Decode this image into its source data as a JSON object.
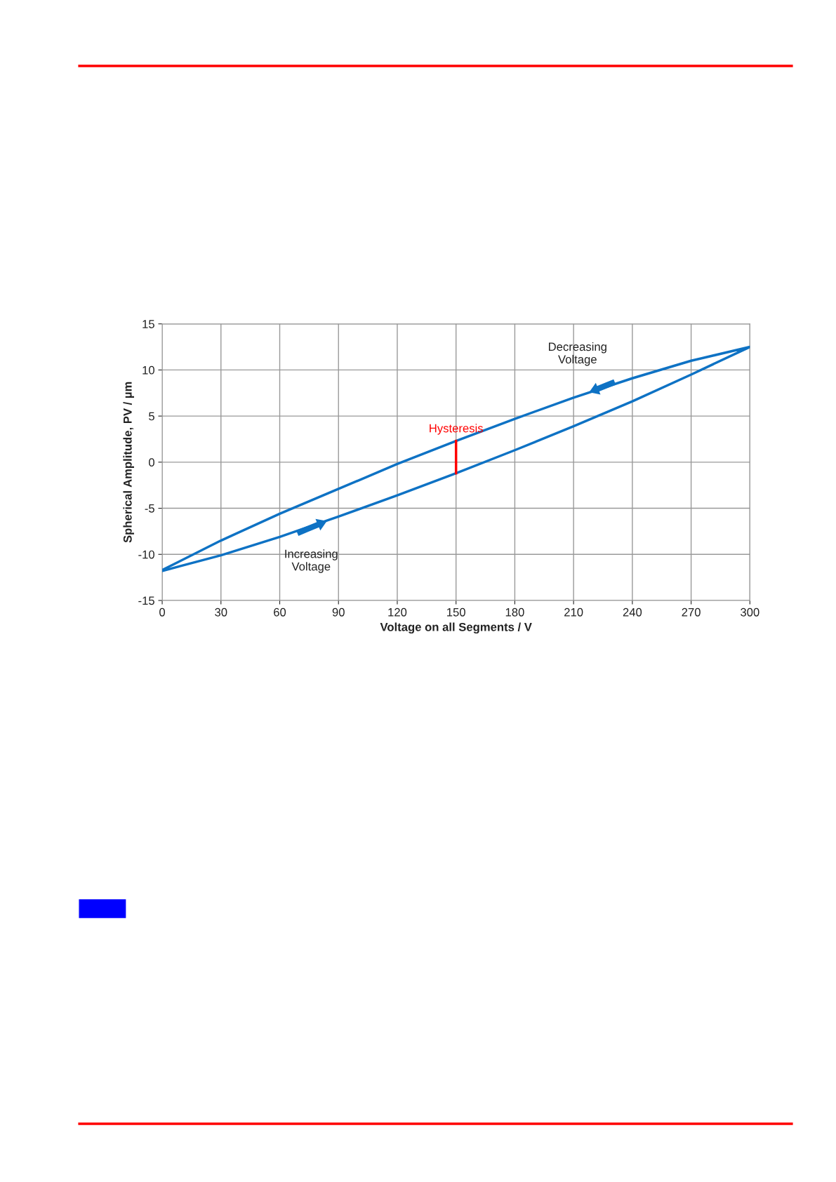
{
  "chart_data": {
    "type": "line",
    "xlabel": "Voltage on all Segments / V",
    "ylabel": "Spherical Amplitude, PV / µm",
    "series": [
      {
        "color": "#0e72c4",
        "x": [
          0,
          30,
          60,
          90,
          120,
          150,
          180,
          210,
          240,
          270,
          300,
          270,
          240,
          210,
          180,
          150,
          120,
          90,
          60,
          30,
          0
        ],
        "values": [
          -11.8,
          -10.1,
          -8.1,
          -5.9,
          -3.6,
          -1.2,
          1.3,
          3.9,
          6.6,
          9.5,
          12.5,
          11.0,
          9.1,
          7.0,
          4.7,
          2.3,
          -0.2,
          -2.9,
          -5.6,
          -8.5,
          -11.7
        ]
      },
      {
        "color": "#ff0000",
        "x": [
          150,
          150
        ],
        "values": [
          -1.2,
          2.3
        ]
      }
    ],
    "annotations": [
      {
        "text": "Hysteresis",
        "x": 150,
        "y": 2.3
      },
      {
        "text": "Increasing\nVoltage",
        "x": 85,
        "y": -6.3
      },
      {
        "text": "Decreasing\nVoltage",
        "x": 217,
        "y": 7.5
      }
    ],
    "xlim": [
      0,
      300
    ],
    "xticks": [
      0,
      30,
      60,
      90,
      120,
      150,
      180,
      210,
      240,
      270,
      300
    ],
    "ylim": [
      -15,
      15
    ],
    "yticks": [
      -15,
      -10,
      -5,
      0,
      5,
      10,
      15
    ],
    "grid": true,
    "legend": false,
    "marker": "none",
    "line_style": "solid"
  }
}
